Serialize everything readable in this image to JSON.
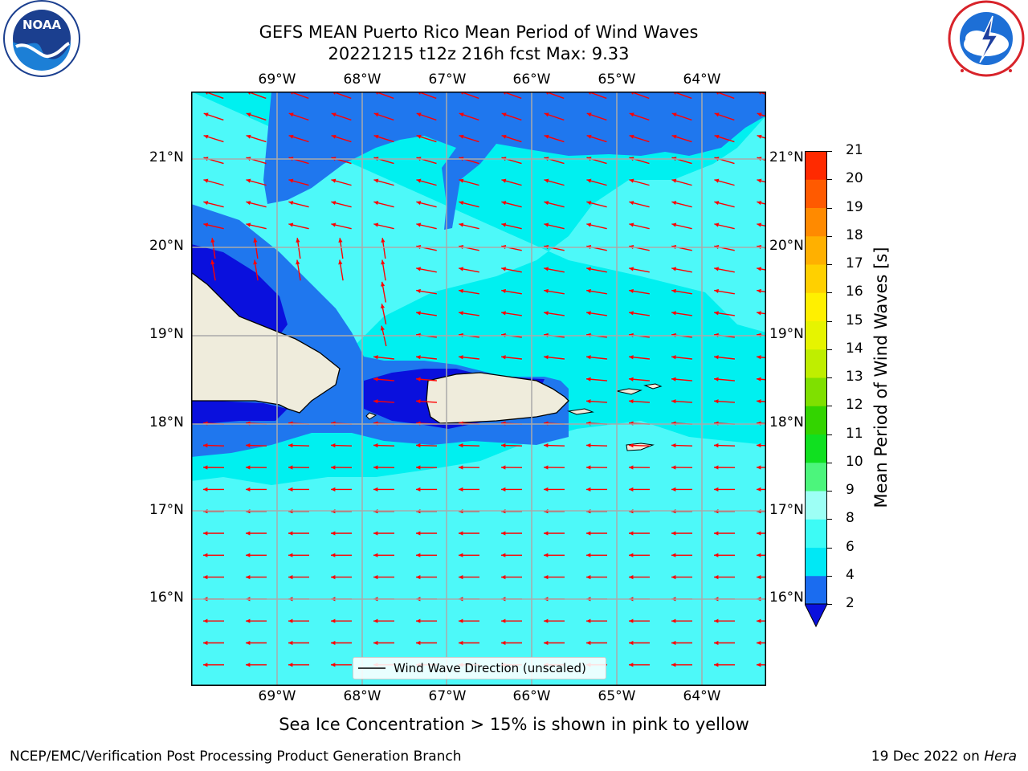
{
  "header": {
    "title_line1": "GEFS MEAN Puerto Rico Mean Period of Wind Waves",
    "title_line2": "20221215 t12z 216h fcst   Max: 9.33"
  },
  "logos": {
    "noaa": {
      "text": "NOAA",
      "ring_text": "NATIONAL OCEANIC AND ATMOSPHERIC ADMINISTRATION · U.S. DEPARTMENT OF COMMERCE"
    },
    "nws": {
      "ring_text": "NATIONAL WEATHER SERVICE"
    }
  },
  "map": {
    "lon_labels": [
      "69°W",
      "68°W",
      "67°W",
      "66°W",
      "65°W",
      "64°W"
    ],
    "lat_labels": [
      "21°N",
      "20°N",
      "19°N",
      "18°N",
      "17°N",
      "16°N"
    ],
    "legend": "Wind Wave Direction (unscaled)",
    "colors": {
      "land": "#efecdc",
      "ocean_6_8": "#4df9f9",
      "ocean_4_6": "#00f0f0",
      "ocean_2_4": "#1f77ee",
      "ocean_lt2": "#0a10dd",
      "arrow": "#ff0000"
    }
  },
  "colorbar": {
    "label": "Mean Period of Wind Waves [s]",
    "ticks": [
      "2",
      "4",
      "6",
      "8",
      "9",
      "10",
      "11",
      "12",
      "13",
      "14",
      "15",
      "16",
      "17",
      "18",
      "19",
      "20",
      "21"
    ],
    "colors": [
      "#1a6cf0",
      "#00e8f5",
      "#3dfbf5",
      "#9dfff5",
      "#4cf57c",
      "#10e020",
      "#33d400",
      "#7fe000",
      "#bfee00",
      "#e6f400",
      "#fff000",
      "#ffd000",
      "#ffb000",
      "#ff8a00",
      "#ff5a00",
      "#ff2a00"
    ],
    "under_color": "#0a10dd"
  },
  "notes": {
    "sea_ice": "Sea Ice Concentration > 15% is shown in pink to yellow"
  },
  "footer": {
    "left": "NCEP/EMC/Verification Post Processing Product Generation Branch",
    "right_date": "19 Dec 2022 on ",
    "right_host": "Hera"
  }
}
